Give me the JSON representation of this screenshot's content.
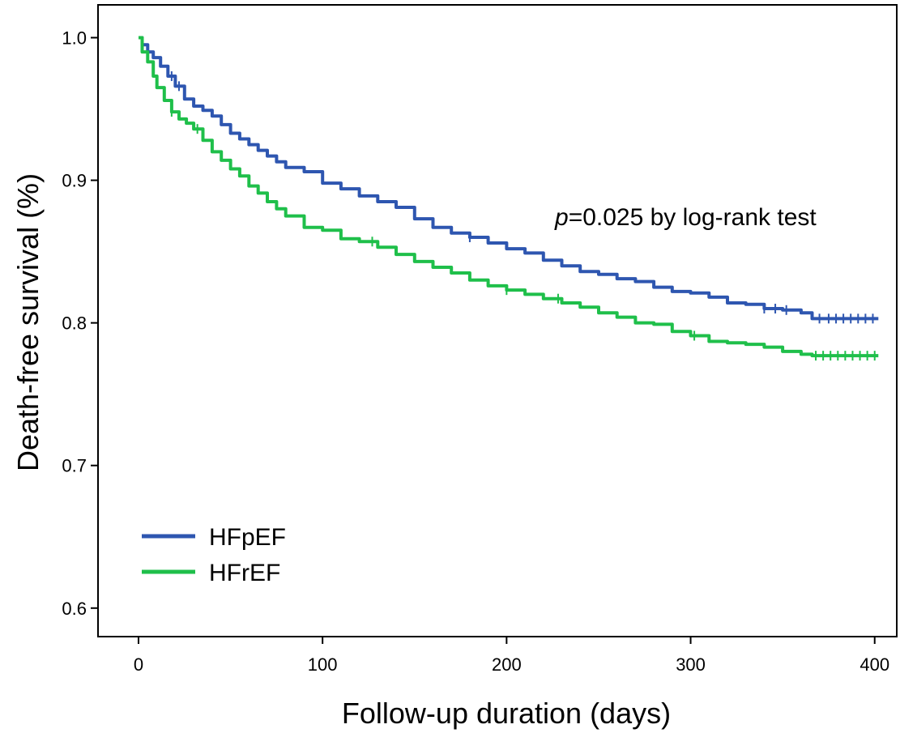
{
  "chart_data": {
    "type": "line",
    "title": "",
    "xlabel": "Follow-up duration (days)",
    "ylabel": "Death-free survival (%)",
    "xlim": [
      -22,
      412
    ],
    "ylim": [
      0.58,
      1.023
    ],
    "x_ticks": [
      0,
      100,
      200,
      300,
      400
    ],
    "y_ticks": [
      0.6,
      0.7,
      0.8,
      0.9,
      1.0
    ],
    "x_tick_labels": [
      "0",
      "100",
      "200",
      "300",
      "400"
    ],
    "y_tick_labels": [
      "0.6",
      "0.7",
      "0.8",
      "0.9",
      "1.0"
    ],
    "grid": false,
    "legend_position": "bottom-left",
    "annotation": {
      "p_italic": "p",
      "rest": "=0.025 by log-rank test"
    },
    "series": [
      {
        "name": "HFpEF",
        "color": "#2e56b0",
        "step": true,
        "points": [
          [
            0,
            1.0
          ],
          [
            2,
            0.995
          ],
          [
            5,
            0.99
          ],
          [
            8,
            0.986
          ],
          [
            12,
            0.98
          ],
          [
            16,
            0.973
          ],
          [
            20,
            0.966
          ],
          [
            25,
            0.957
          ],
          [
            30,
            0.952
          ],
          [
            35,
            0.949
          ],
          [
            40,
            0.945
          ],
          [
            45,
            0.939
          ],
          [
            50,
            0.933
          ],
          [
            55,
            0.929
          ],
          [
            60,
            0.925
          ],
          [
            65,
            0.921
          ],
          [
            70,
            0.917
          ],
          [
            75,
            0.913
          ],
          [
            80,
            0.909
          ],
          [
            90,
            0.906
          ],
          [
            100,
            0.898
          ],
          [
            110,
            0.894
          ],
          [
            120,
            0.889
          ],
          [
            130,
            0.885
          ],
          [
            140,
            0.881
          ],
          [
            150,
            0.873
          ],
          [
            160,
            0.867
          ],
          [
            170,
            0.863
          ],
          [
            180,
            0.86
          ],
          [
            190,
            0.856
          ],
          [
            200,
            0.852
          ],
          [
            210,
            0.849
          ],
          [
            220,
            0.844
          ],
          [
            230,
            0.84
          ],
          [
            240,
            0.836
          ],
          [
            250,
            0.834
          ],
          [
            260,
            0.831
          ],
          [
            270,
            0.829
          ],
          [
            280,
            0.825
          ],
          [
            290,
            0.822
          ],
          [
            300,
            0.821
          ],
          [
            310,
            0.818
          ],
          [
            320,
            0.814
          ],
          [
            330,
            0.813
          ],
          [
            340,
            0.81
          ],
          [
            350,
            0.809
          ],
          [
            360,
            0.807
          ],
          [
            366,
            0.803
          ],
          [
            402,
            0.803
          ]
        ],
        "censor_x": [
          18,
          22,
          180,
          340,
          346,
          352,
          370,
          375,
          379,
          383,
          387,
          391,
          395,
          399
        ]
      },
      {
        "name": "HFrEF",
        "color": "#1fbf4a",
        "step": true,
        "points": [
          [
            0,
            1.0
          ],
          [
            2,
            0.99
          ],
          [
            5,
            0.983
          ],
          [
            8,
            0.973
          ],
          [
            10,
            0.965
          ],
          [
            14,
            0.956
          ],
          [
            18,
            0.948
          ],
          [
            22,
            0.943
          ],
          [
            26,
            0.94
          ],
          [
            30,
            0.936
          ],
          [
            35,
            0.928
          ],
          [
            40,
            0.92
          ],
          [
            45,
            0.914
          ],
          [
            50,
            0.908
          ],
          [
            55,
            0.903
          ],
          [
            60,
            0.896
          ],
          [
            65,
            0.891
          ],
          [
            70,
            0.885
          ],
          [
            75,
            0.88
          ],
          [
            80,
            0.875
          ],
          [
            90,
            0.867
          ],
          [
            100,
            0.865
          ],
          [
            110,
            0.859
          ],
          [
            120,
            0.857
          ],
          [
            130,
            0.853
          ],
          [
            140,
            0.848
          ],
          [
            150,
            0.843
          ],
          [
            160,
            0.839
          ],
          [
            170,
            0.835
          ],
          [
            180,
            0.83
          ],
          [
            190,
            0.826
          ],
          [
            200,
            0.823
          ],
          [
            210,
            0.82
          ],
          [
            220,
            0.817
          ],
          [
            230,
            0.814
          ],
          [
            240,
            0.811
          ],
          [
            250,
            0.807
          ],
          [
            260,
            0.804
          ],
          [
            270,
            0.8
          ],
          [
            280,
            0.799
          ],
          [
            290,
            0.794
          ],
          [
            300,
            0.791
          ],
          [
            310,
            0.787
          ],
          [
            320,
            0.786
          ],
          [
            330,
            0.785
          ],
          [
            340,
            0.783
          ],
          [
            350,
            0.78
          ],
          [
            360,
            0.778
          ],
          [
            366,
            0.777
          ],
          [
            402,
            0.777
          ]
        ],
        "censor_x": [
          18,
          32,
          127,
          200,
          228,
          302,
          368,
          372,
          376,
          380,
          384,
          388,
          392,
          396,
          400
        ]
      }
    ]
  }
}
